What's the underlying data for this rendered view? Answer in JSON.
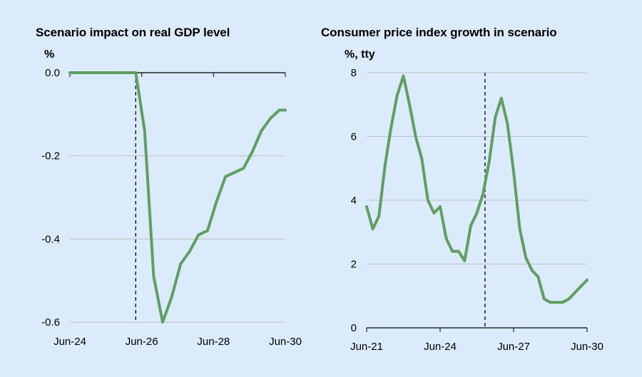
{
  "chart_data": [
    {
      "type": "line",
      "title": "Scenario impact on real GDP level",
      "ylabel": "%",
      "xlabel": "",
      "ylim": [
        -0.6,
        0.0
      ],
      "yticks": [
        0.0,
        -0.2,
        -0.4,
        -0.6
      ],
      "ytick_labels": [
        "0.0",
        "-0.2",
        "-0.4",
        "-0.6"
      ],
      "xlim": [
        2024.417,
        2030.417
      ],
      "xticks": [
        2024.417,
        2026.417,
        2028.417,
        2030.417
      ],
      "xtick_labels": [
        "Jun-24",
        "Jun-26",
        "Jun-28",
        "Jun-30"
      ],
      "grid": "horizontal",
      "vline_x": 2026.25,
      "color": "#5f9f5f",
      "series": [
        {
          "x": [
            2024.417,
            2026.25,
            2026.5,
            2026.75,
            2027.0,
            2027.25,
            2027.5,
            2027.75,
            2028.0,
            2028.25,
            2028.5,
            2028.75,
            2029.0,
            2029.25,
            2029.5,
            2029.75,
            2030.0,
            2030.25,
            2030.417
          ],
          "values": [
            0.0,
            0.0,
            -0.14,
            -0.49,
            -0.6,
            -0.54,
            -0.46,
            -0.43,
            -0.39,
            -0.38,
            -0.31,
            -0.25,
            -0.24,
            -0.23,
            -0.19,
            -0.14,
            -0.11,
            -0.09,
            -0.09
          ]
        }
      ]
    },
    {
      "type": "line",
      "title": "Consumer price index growth in scenario",
      "ylabel": "%, tty",
      "xlabel": "",
      "ylim": [
        0,
        8
      ],
      "yticks": [
        0,
        2,
        4,
        6,
        8
      ],
      "ytick_labels": [
        "0",
        "2",
        "4",
        "6",
        "8"
      ],
      "xlim": [
        2021.417,
        2030.417
      ],
      "xticks": [
        2021.417,
        2024.417,
        2027.417,
        2030.417
      ],
      "xtick_labels": [
        "Jun-21",
        "Jun-24",
        "Jun-27",
        "Jun-30"
      ],
      "grid": "horizontal",
      "vline_x": 2026.25,
      "color": "#5f9f5f",
      "series": [
        {
          "x": [
            2021.417,
            2021.667,
            2021.917,
            2022.167,
            2022.417,
            2022.667,
            2022.917,
            2023.167,
            2023.417,
            2023.667,
            2023.917,
            2024.167,
            2024.417,
            2024.667,
            2024.917,
            2025.167,
            2025.417,
            2025.667,
            2025.917,
            2026.167,
            2026.417,
            2026.667,
            2026.917,
            2027.167,
            2027.417,
            2027.667,
            2027.917,
            2028.167,
            2028.417,
            2028.667,
            2028.917,
            2029.167,
            2029.417,
            2029.667,
            2029.917,
            2030.167,
            2030.417
          ],
          "values": [
            3.8,
            3.1,
            3.5,
            5.1,
            6.3,
            7.3,
            7.9,
            7.0,
            6.0,
            5.3,
            4.0,
            3.6,
            3.8,
            2.8,
            2.4,
            2.4,
            2.1,
            3.2,
            3.6,
            4.2,
            5.2,
            6.6,
            7.2,
            6.4,
            4.9,
            3.1,
            2.2,
            1.8,
            1.6,
            0.9,
            0.8,
            0.8,
            0.8,
            0.9,
            1.1,
            1.3,
            1.5
          ]
        }
      ]
    }
  ]
}
